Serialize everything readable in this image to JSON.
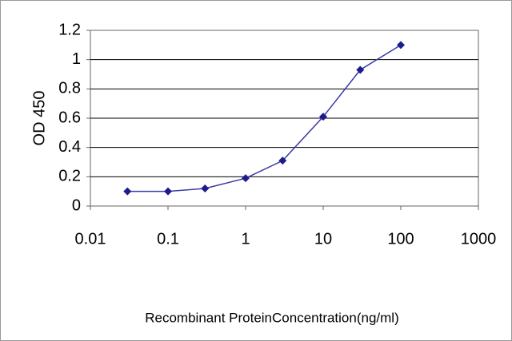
{
  "chart_data": {
    "type": "line",
    "x": [
      0.03,
      0.1,
      0.3,
      1,
      3,
      10,
      30,
      100
    ],
    "values": [
      0.1,
      0.1,
      0.12,
      0.19,
      0.31,
      0.61,
      0.93,
      1.1
    ],
    "color": "#3a3aa8",
    "marker_color": "#1c1c8c",
    "xscale": "log",
    "xlim": [
      0.01,
      1000
    ],
    "xticks": [
      0.01,
      0.1,
      1,
      10,
      100,
      1000
    ],
    "ylim": [
      0,
      1.2
    ],
    "yticks": [
      0,
      0.2,
      0.4,
      0.6,
      0.8,
      1,
      1.2
    ],
    "grid": true,
    "ylabel": "OD 450",
    "xlabel": "Recombinant ProteinConcentration(ng/ml)"
  }
}
